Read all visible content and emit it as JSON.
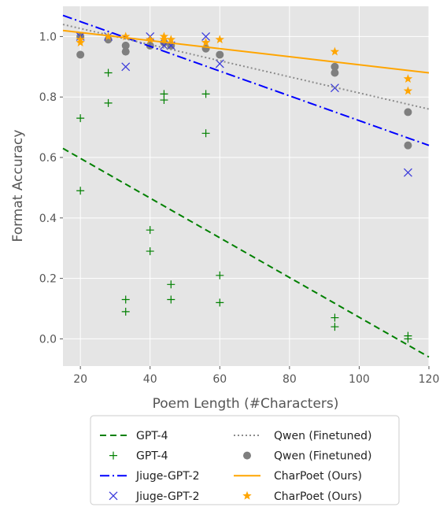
{
  "chart_data": {
    "type": "scatter",
    "xlabel": "Poem Length (#Characters)",
    "ylabel": "Format Accuracy",
    "xlim": [
      15,
      120
    ],
    "ylim": [
      -0.09,
      1.1
    ],
    "xticks": [
      "20",
      "40",
      "60",
      "80",
      "100",
      "120"
    ],
    "yticks": [
      "0.0",
      "0.2",
      "0.4",
      "0.6",
      "0.8",
      "1.0"
    ],
    "grid": true,
    "legend_position": "bottom",
    "series": [
      {
        "name": "GPT-4",
        "kind": "trend",
        "color": "#008000",
        "dash": "8,5",
        "x": [
          15,
          120
        ],
        "y": [
          0.63,
          -0.06
        ]
      },
      {
        "name": "GPT-4",
        "kind": "points",
        "marker": "plus",
        "color": "#008000",
        "x": [
          20,
          20,
          28,
          28,
          33,
          33,
          40,
          40,
          44,
          44,
          46,
          46,
          56,
          56,
          60,
          60,
          93,
          93,
          114,
          114
        ],
        "y": [
          0.73,
          0.49,
          0.88,
          0.78,
          0.13,
          0.09,
          0.36,
          0.29,
          0.81,
          0.79,
          0.18,
          0.13,
          0.81,
          0.68,
          0.21,
          0.12,
          0.07,
          0.04,
          0.01,
          0.0
        ]
      },
      {
        "name": "Jiuge-GPT-2",
        "kind": "trend",
        "color": "#0000ff",
        "dash": "12,4,2,4",
        "x": [
          15,
          120
        ],
        "y": [
          1.07,
          0.64
        ]
      },
      {
        "name": "Jiuge-GPT-2",
        "kind": "points",
        "marker": "x",
        "color": "#3b3bdb",
        "x": [
          20,
          28,
          33,
          40,
          44,
          46,
          56,
          60,
          93,
          114
        ],
        "y": [
          1.0,
          1.0,
          0.9,
          1.0,
          0.97,
          0.97,
          1.0,
          0.91,
          0.83,
          0.55
        ]
      },
      {
        "name": "Qwen (Finetuned)",
        "kind": "trend",
        "color": "#8c8c8c",
        "dash": "2,3",
        "x": [
          15,
          120
        ],
        "y": [
          1.04,
          0.76
        ]
      },
      {
        "name": "Qwen (Finetuned)",
        "kind": "points",
        "marker": "circle",
        "color": "#7f7f7f",
        "x": [
          20,
          20,
          28,
          33,
          33,
          40,
          44,
          46,
          56,
          60,
          93,
          93,
          114,
          114
        ],
        "y": [
          1.0,
          0.94,
          0.99,
          0.97,
          0.95,
          0.97,
          0.98,
          0.97,
          0.96,
          0.94,
          0.9,
          0.88,
          0.75,
          0.64
        ]
      },
      {
        "name": "CharPoet (Ours)",
        "kind": "trend",
        "color": "#ffa500",
        "dash": "",
        "x": [
          15,
          120
        ],
        "y": [
          1.02,
          0.88
        ]
      },
      {
        "name": "CharPoet (Ours)",
        "kind": "points",
        "marker": "star",
        "color": "#ffa500",
        "x": [
          20,
          20,
          28,
          33,
          40,
          44,
          44,
          46,
          56,
          60,
          93,
          114,
          114
        ],
        "y": [
          0.99,
          0.98,
          1.0,
          1.0,
          0.99,
          1.0,
          0.99,
          0.99,
          0.98,
          0.99,
          0.95,
          0.86,
          0.82
        ]
      }
    ]
  }
}
